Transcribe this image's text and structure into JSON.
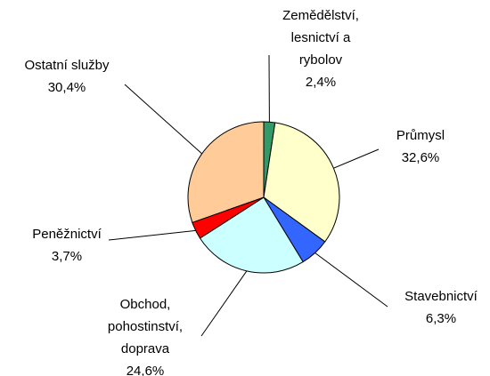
{
  "chart_data": {
    "type": "pie",
    "categories": [
      "Zemědělství,\nlesnictví a\nrybolov",
      "Průmysl",
      "Stavebnictví",
      "Obchod,\npohostinství,\ndoprava",
      "Peněžnictví",
      "Ostatní služby"
    ],
    "values": [
      2.4,
      32.6,
      6.3,
      24.6,
      3.7,
      30.4
    ],
    "value_labels": [
      "2,4%",
      "32,6%",
      "6,3%",
      "24,6%",
      "3,7%",
      "30,4%"
    ],
    "colors": [
      "#339966",
      "#ffffcc",
      "#3366ff",
      "#ccffff",
      "#ff0000",
      "#ffcc99"
    ]
  }
}
